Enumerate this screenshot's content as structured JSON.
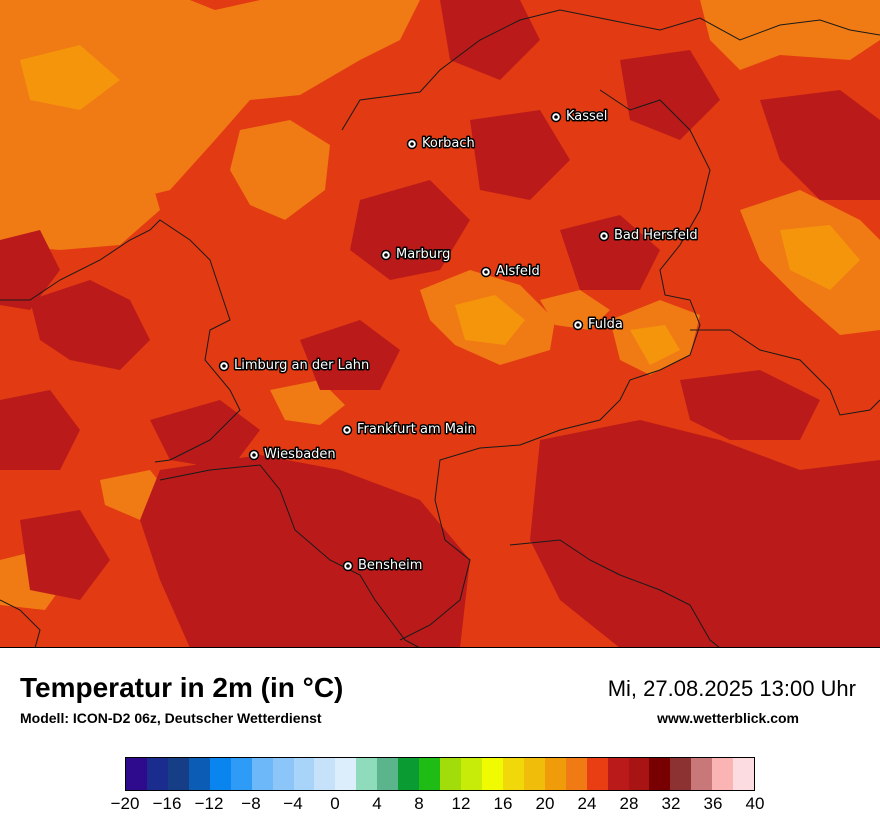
{
  "map": {
    "background": "#E23A12",
    "palette": {
      "hot_dark": "#BA1A1A",
      "warm": "#E93E14",
      "orange": "#F07A14",
      "light_orange": "#F5950C"
    },
    "cities": [
      {
        "name": "Kassel"
      },
      {
        "name": "Korbach"
      },
      {
        "name": "Bad Hersfeld"
      },
      {
        "name": "Marburg"
      },
      {
        "name": "Alsfeld"
      },
      {
        "name": "Fulda"
      },
      {
        "name": "Limburg an der Lahn"
      },
      {
        "name": "Frankfurt am Main"
      },
      {
        "name": "Wiesbaden"
      },
      {
        "name": "Bensheim"
      }
    ]
  },
  "footer": {
    "title": "Temperatur in 2m (in °C)",
    "subtitle": "Modell: ICON-D2 06z, Deutscher Wetterdienst",
    "datetime": "Mi, 27.08.2025 13:00 Uhr",
    "website": "www.wetterblick.com"
  },
  "legend": {
    "colors": [
      "#2E0A8C",
      "#1A2C8E",
      "#163E86",
      "#0A5CB4",
      "#0A84EE",
      "#2E9CF6",
      "#6CB8F8",
      "#8CC6F8",
      "#A8D4FA",
      "#C6E2FA",
      "#DCEEFC",
      "#8EDCBC",
      "#5CB48C",
      "#0A9C32",
      "#1EBC14",
      "#A2DC0A",
      "#C8EC0A",
      "#F0FA00",
      "#F0D80A",
      "#F0BE0A",
      "#F09C0A",
      "#F07A14",
      "#E93E14",
      "#BA1A1A",
      "#A81414",
      "#780000",
      "#8C3232",
      "#C87878",
      "#FAB4B4",
      "#FCDCE0"
    ],
    "ticks": [
      "−20",
      "−16",
      "−12",
      "−8",
      "−4",
      "0",
      "4",
      "8",
      "12",
      "16",
      "20",
      "24",
      "28",
      "32",
      "36",
      "40"
    ]
  }
}
